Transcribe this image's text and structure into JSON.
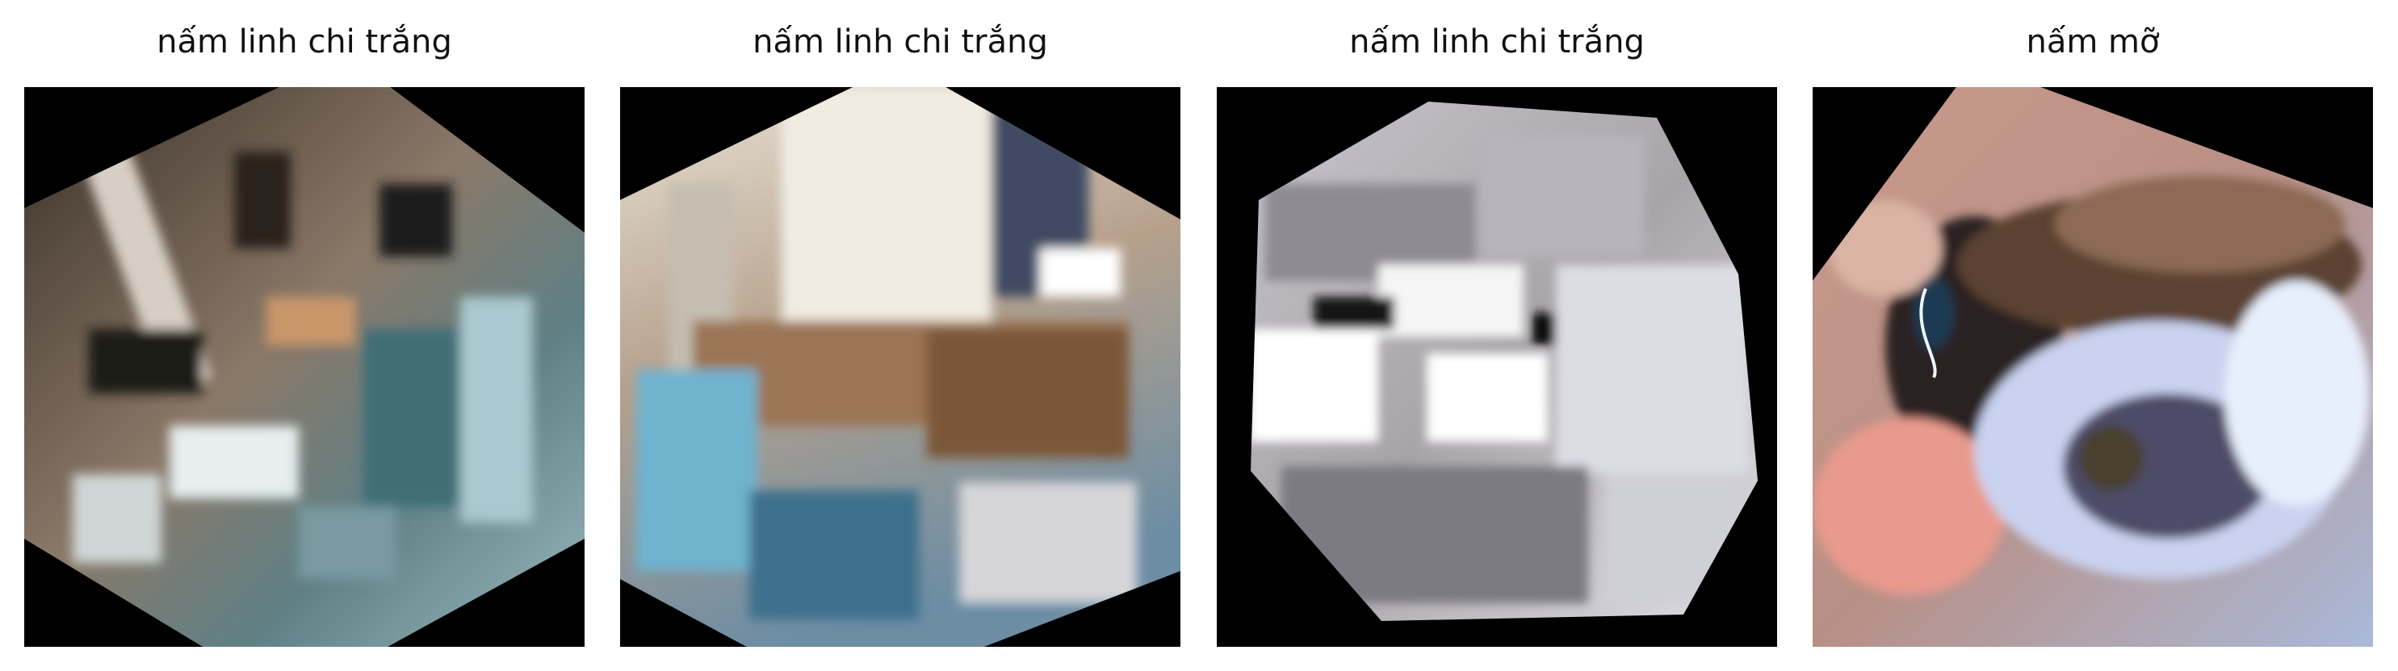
{
  "panels": [
    {
      "title": "nấm linh chi trắng"
    },
    {
      "title": "nấm linh chi trắng"
    },
    {
      "title": "nấm linh chi trắng"
    },
    {
      "title": "nấm mỡ"
    }
  ]
}
